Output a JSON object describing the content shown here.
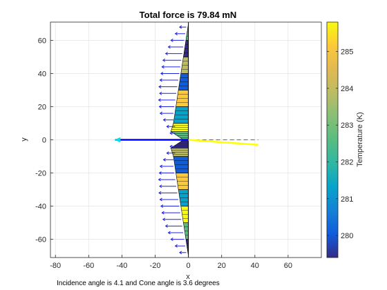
{
  "chart_data": {
    "type": "vector-field",
    "title": "Total force is 79.84 mN",
    "xlabel": "x",
    "ylabel": "y",
    "xlim": [
      -83,
      80
    ],
    "ylim": [
      -71,
      71
    ],
    "xticks": [
      -80,
      -60,
      -40,
      -20,
      0,
      20,
      40,
      60
    ],
    "yticks": [
      -60,
      -40,
      -20,
      0,
      20,
      40,
      60
    ],
    "xtick_labels": [
      "-80",
      "-60",
      "-40",
      "-20",
      "0",
      "20",
      "40",
      "60"
    ],
    "ytick_labels": [
      "-60",
      "-40",
      "-20",
      "0",
      "20",
      "40",
      "60"
    ],
    "grid": true,
    "colorbar": {
      "label": "Temperature (K)",
      "range": [
        279.4,
        285.8
      ],
      "ticks": [
        280,
        281,
        282,
        283,
        284,
        285
      ],
      "tick_labels": [
        "280",
        "281",
        "282",
        "283",
        "284",
        "285"
      ],
      "colormap": "parula"
    },
    "annotation": "Incidence angle is 4.1 and Cone angle is 3.6 degrees",
    "total_force_vector": {
      "from": [
        0,
        0
      ],
      "to": [
        -44,
        0
      ],
      "color": "#0000ff"
    },
    "incident_beam": {
      "from": [
        0,
        0
      ],
      "to": [
        42,
        -3
      ],
      "color": "#ffff00"
    },
    "reference_line": {
      "from": [
        0,
        0
      ],
      "to": [
        42,
        0
      ],
      "style": "dashed"
    },
    "surface_profile": {
      "y": [
        -70,
        -60,
        -50,
        -40,
        -30,
        -20,
        -10,
        -5,
        0,
        5,
        10,
        20,
        30,
        40,
        50,
        60,
        70
      ],
      "x": [
        0,
        -1.5,
        -3,
        -4.5,
        -6,
        -7.5,
        -9,
        -10.5,
        -3,
        -10.5,
        -9,
        -7.5,
        -6,
        -4.5,
        -3,
        -1.5,
        0
      ]
    },
    "surface_force_arrows": {
      "y": [
        -68,
        -64,
        -60,
        -56,
        -52,
        -48,
        -44,
        -40,
        -36,
        -32,
        -28,
        -24,
        -20,
        -16,
        -12,
        -8,
        -4,
        4,
        8,
        12,
        16,
        20,
        24,
        28,
        32,
        36,
        40,
        44,
        48,
        52,
        56,
        60,
        64,
        68
      ],
      "length": [
        4,
        6,
        8,
        9,
        10,
        11,
        11,
        11,
        11,
        11,
        10,
        10,
        9,
        8,
        6,
        5,
        3,
        3,
        5,
        6,
        8,
        9,
        10,
        10,
        11,
        11,
        11,
        11,
        11,
        10,
        9,
        8,
        6,
        4
      ],
      "color": "#2020e0"
    },
    "colors": {
      "axis": "#262626",
      "grid": "#e6e6e6",
      "arrow_head": "#00e0e0"
    }
  }
}
